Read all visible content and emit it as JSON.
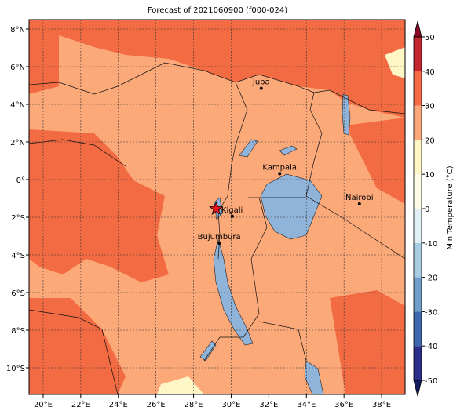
{
  "title": "Forecast of 2021060900 (f000-024)",
  "lon_ticks": [
    {
      "value": 20,
      "label": "20°E"
    },
    {
      "value": 22,
      "label": "22°E"
    },
    {
      "value": 24,
      "label": "24°E"
    },
    {
      "value": 26,
      "label": "26°E"
    },
    {
      "value": 28,
      "label": "28°E"
    },
    {
      "value": 30,
      "label": "30°E"
    },
    {
      "value": 32,
      "label": "32°E"
    },
    {
      "value": 34,
      "label": "34°E"
    },
    {
      "value": 36,
      "label": "36°E"
    },
    {
      "value": 38,
      "label": "38°E"
    }
  ],
  "lat_ticks": [
    {
      "value": 8,
      "label": "8°N"
    },
    {
      "value": 6,
      "label": "6°N"
    },
    {
      "value": 4,
      "label": "4°N"
    },
    {
      "value": 2,
      "label": "2°N"
    },
    {
      "value": 0,
      "label": "0°"
    },
    {
      "value": -2,
      "label": "2°S"
    },
    {
      "value": -4,
      "label": "4°S"
    },
    {
      "value": -6,
      "label": "6°S"
    },
    {
      "value": -8,
      "label": "8°S"
    },
    {
      "value": -10,
      "label": "10°S"
    }
  ],
  "cities": [
    {
      "name": "Juba",
      "lon": 31.6,
      "lat": 4.85
    },
    {
      "name": "Kampala",
      "lon": 32.58,
      "lat": 0.32
    },
    {
      "name": "Nairobi",
      "lon": 36.82,
      "lat": -1.29
    },
    {
      "name": "Kigali",
      "lon": 30.06,
      "lat": -1.95
    },
    {
      "name": "Bujumbura",
      "lon": 29.36,
      "lat": -3.38
    }
  ],
  "target": {
    "lon": 29.2,
    "lat": -1.55
  },
  "colorbar": {
    "label": "Min Temperature (°C)",
    "lim": [
      -50,
      50
    ],
    "ticks": [
      -50,
      -40,
      -30,
      -20,
      -10,
      0,
      10,
      20,
      30,
      40,
      50
    ],
    "colors": [
      "#2b2f8a",
      "#3f67ad",
      "#6f9cc8",
      "#a8cce2",
      "#e0f0f6",
      "#fffce6",
      "#fef6c4",
      "#fca97a",
      "#f26b43",
      "#c4262f"
    ],
    "under": "#151b5e",
    "over": "#8a0a25"
  }
}
